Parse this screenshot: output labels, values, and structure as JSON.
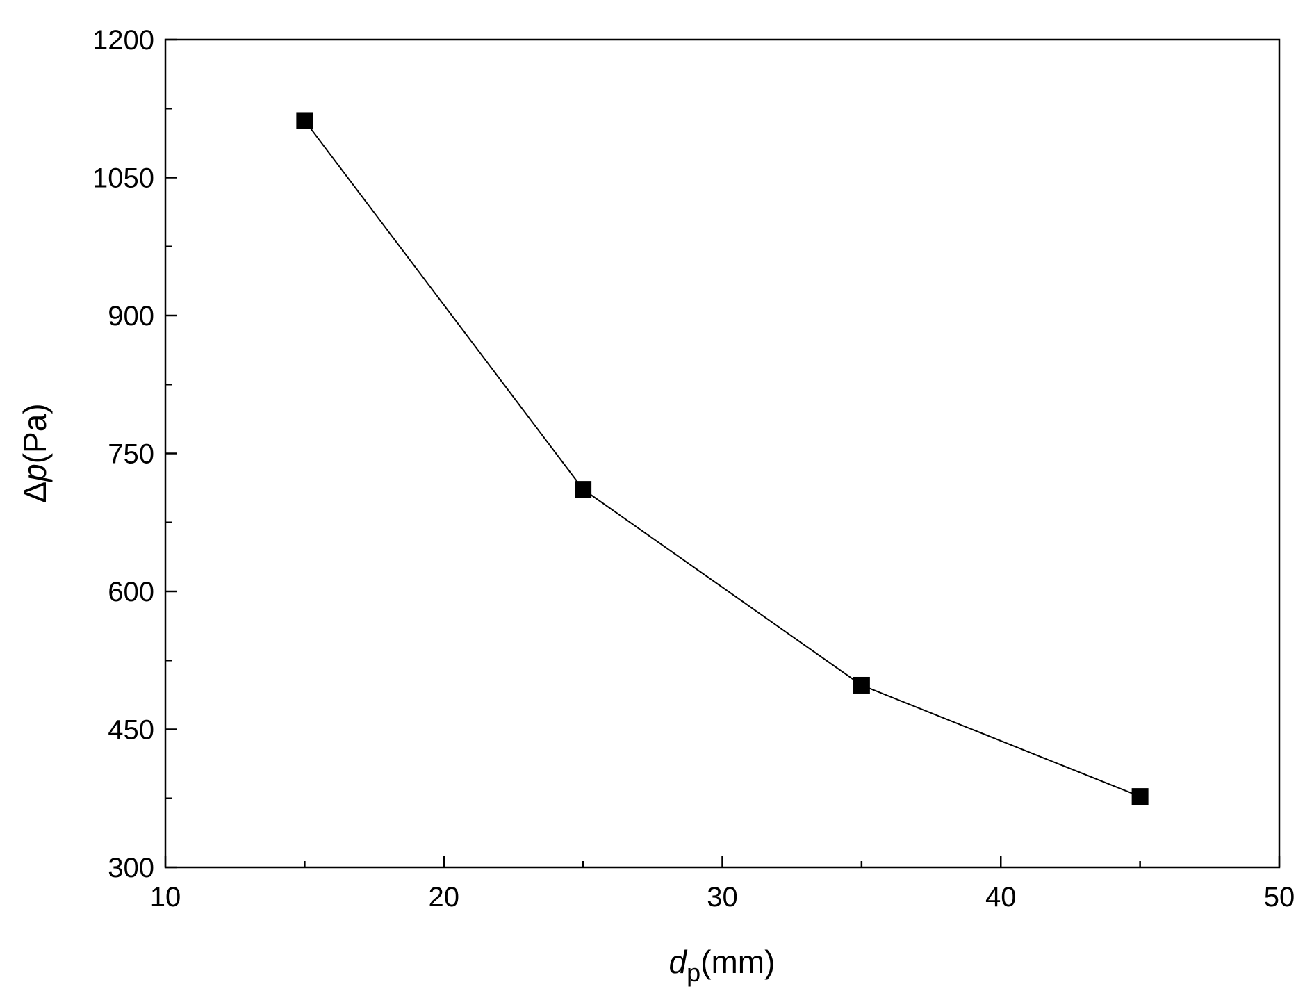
{
  "chart_data": {
    "type": "line",
    "title": "",
    "xlabel": {
      "symbol": "d",
      "subscript": "p",
      "unit": "(mm)"
    },
    "ylabel": {
      "prefix": "Δ",
      "symbol": "p",
      "unit": "(Pa)"
    },
    "xlim": [
      10,
      50
    ],
    "ylim": [
      300,
      1200
    ],
    "x_ticks": [
      10,
      20,
      30,
      40,
      50
    ],
    "x_tick_labels": [
      "10",
      "20",
      "30",
      "40",
      "50"
    ],
    "x_minor_ticks": [
      15,
      25,
      35,
      45
    ],
    "y_ticks": [
      300,
      450,
      600,
      750,
      900,
      1050,
      1200
    ],
    "y_tick_labels": [
      "300",
      "450",
      "600",
      "750",
      "900",
      "1050",
      "1200"
    ],
    "y_minor_ticks": [
      375,
      525,
      675,
      825,
      975,
      1125
    ],
    "grid": false,
    "legend": "none",
    "series": [
      {
        "marker": "square",
        "color": "#000000",
        "x": [
          15,
          25,
          35,
          45
        ],
        "y": [
          1112,
          711,
          498,
          377
        ]
      }
    ]
  }
}
